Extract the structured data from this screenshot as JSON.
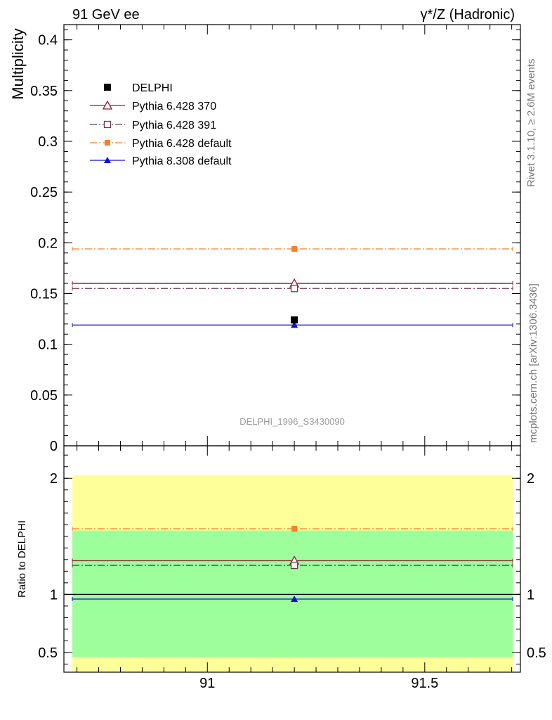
{
  "header": {
    "left": "91 GeV ee",
    "right": "γ*/Z (Hadronic)"
  },
  "side_labels": {
    "rivet": "Rivet 3.1.10, ≥ 2.6M events",
    "mcplots": "mcplots.cern.ch [arXiv:1306.3436]"
  },
  "watermark": "DELPHI_1996_S3430090",
  "colors": {
    "delphi": "#000000",
    "p370": "#8b1a2b",
    "p391": "#6e3a4a",
    "p6def": "#f57f2e",
    "p8def": "#1010cc",
    "band_inner": "#9cff9c",
    "band_outer": "#ffff99"
  },
  "chart_data": [
    {
      "type": "scatter",
      "panel": "main",
      "ylabel": "Multiplicity",
      "xlim": [
        90.67,
        91.72
      ],
      "ylim": [
        0,
        0.415
      ],
      "yticks": [
        0,
        0.05,
        0.1,
        0.15,
        0.2,
        0.25,
        0.3,
        0.35,
        0.4
      ],
      "ytick_labels": [
        "0",
        "0.05",
        "0.1",
        "0.15",
        "0.2",
        "0.25",
        "0.3",
        "0.35",
        "0.4"
      ],
      "legend_position": "top-left",
      "series": [
        {
          "name": "DELPHI",
          "key": "delphi",
          "marker": "square-filled",
          "x": 91.2,
          "y": 0.124
        },
        {
          "name": "Pythia 6.428 370",
          "key": "p370",
          "marker": "triangle-open",
          "line": "solid",
          "x": 91.2,
          "y": 0.16
        },
        {
          "name": "Pythia 6.428 391",
          "key": "p391",
          "marker": "square-open",
          "line": "dashdot",
          "x": 91.2,
          "y": 0.155
        },
        {
          "name": "Pythia 6.428 default",
          "key": "p6def",
          "marker": "square-filled-small",
          "line": "dashdot",
          "x": 91.2,
          "y": 0.194
        },
        {
          "name": "Pythia 8.308 default",
          "key": "p8def",
          "marker": "triangle-filled",
          "line": "solid",
          "x": 91.2,
          "y": 0.119
        }
      ]
    },
    {
      "type": "scatter",
      "panel": "ratio",
      "ylabel": "Ratio to DELPHI",
      "xlim": [
        90.67,
        91.72
      ],
      "ylim": [
        0.33,
        2.28
      ],
      "yticks": [
        0.5,
        1,
        2
      ],
      "ytick_labels": [
        "0.5",
        "1",
        "2"
      ],
      "xticks": [
        91,
        91.5
      ],
      "xtick_labels": [
        "91",
        "91.5"
      ],
      "band_inner": [
        0.46,
        1.55
      ],
      "band_outer": [
        0.33,
        2.03
      ],
      "series": [
        {
          "key": "delphi",
          "y": 1.0
        },
        {
          "key": "p370",
          "y": 1.29
        },
        {
          "key": "p391",
          "y": 1.25
        },
        {
          "key": "p6def",
          "y": 1.565
        },
        {
          "key": "p8def",
          "y": 0.96
        }
      ]
    }
  ]
}
